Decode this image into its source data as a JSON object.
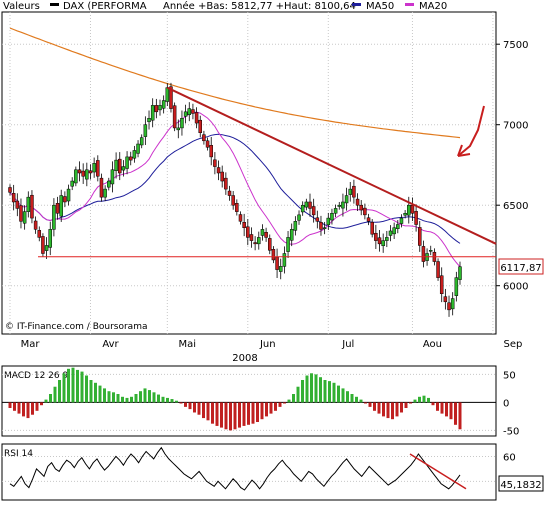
{
  "legend": {
    "valeurs": "Valeurs",
    "dax": "DAX (PERFORMA",
    "annee": "Année +Bas: 5812,77 +Haut: 8100,64",
    "ma50": "MA50",
    "ma20": "MA20"
  },
  "colors": {
    "candle_up": "#2db82d",
    "candle_down": "#c81e1e",
    "ma50": "#1e1e9a",
    "ma20": "#cc33cc",
    "ma_long": "#e07a1e",
    "trendline": "#b41e1e",
    "support": "#e02020",
    "macd_pos": "#33b033",
    "macd_neg": "#c02020",
    "price_box": "#cc2020"
  },
  "source": "© IT-Finance.com / Boursorama",
  "year": "2008",
  "chart_data": [
    {
      "type": "candlestick",
      "title": "DAX (PERFORMA",
      "months": [
        "Mar",
        "Avr",
        "Mai",
        "Jun",
        "Jul",
        "Aou",
        "Sep"
      ],
      "month_day_index": [
        0,
        22,
        43,
        65,
        87,
        110,
        132
      ],
      "ylim": [
        5700,
        7700
      ],
      "yticks": [
        6000,
        6500,
        7000,
        7500
      ],
      "ytick_labels": [
        "6000",
        "6500",
        "7000",
        "7500"
      ],
      "last_price_label": "6117,87",
      "last_price": 6117.87,
      "closes": [
        6580,
        6520,
        6480,
        6400,
        6460,
        6550,
        6420,
        6350,
        6300,
        6200,
        6250,
        6350,
        6500,
        6450,
        6560,
        6520,
        6600,
        6650,
        6720,
        6700,
        6680,
        6720,
        6700,
        6760,
        6680,
        6550,
        6600,
        6650,
        6720,
        6780,
        6700,
        6740,
        6800,
        6780,
        6840,
        6880,
        6920,
        7000,
        7040,
        7120,
        7080,
        7120,
        7150,
        7230,
        7100,
        6980,
        6980,
        7040,
        7080,
        7100,
        7070,
        7010,
        6950,
        6900,
        6860,
        6800,
        6740,
        6700,
        6650,
        6600,
        6560,
        6500,
        6460,
        6400,
        6360,
        6300,
        6280,
        6260,
        6300,
        6350,
        6300,
        6220,
        6160,
        6100,
        6120,
        6200,
        6300,
        6350,
        6400,
        6440,
        6500,
        6520,
        6480,
        6440,
        6400,
        6350,
        6360,
        6420,
        6450,
        6480,
        6500,
        6520,
        6560,
        6600,
        6550,
        6500,
        6470,
        6440,
        6400,
        6320,
        6280,
        6260,
        6280,
        6300,
        6340,
        6360,
        6380,
        6420,
        6450,
        6500,
        6450,
        6380,
        6250,
        6150,
        6200,
        6220,
        6150,
        6050,
        5950,
        5900,
        5850,
        5920,
        6050,
        6117.87
      ],
      "ma_long": {
        "name": "",
        "start_value": 7600,
        "end_value": 6800
      },
      "ma50": {
        "name": "MA50"
      },
      "ma20": {
        "name": "MA20"
      },
      "trendline": {
        "from": {
          "day": 43,
          "value": 7230
        },
        "to": {
          "day": 160,
          "value": 6260
        }
      },
      "support": {
        "value": 6180
      },
      "annotation": "arrow pointing to long moving average"
    },
    {
      "type": "bar",
      "title": "MACD 12 26 9",
      "ylim": [
        -60,
        65
      ],
      "yticks": [
        50,
        0,
        -50
      ],
      "ytick_labels": [
        "50",
        "0",
        "-50"
      ],
      "values": [
        -10,
        -15,
        -20,
        -25,
        -28,
        -22,
        -15,
        -5,
        5,
        15,
        28,
        40,
        52,
        60,
        62,
        58,
        55,
        48,
        40,
        35,
        30,
        25,
        20,
        18,
        15,
        10,
        8,
        10,
        15,
        20,
        25,
        22,
        18,
        14,
        10,
        8,
        6,
        3,
        -2,
        -8,
        -12,
        -18,
        -22,
        -28,
        -32,
        -38,
        -42,
        -45,
        -48,
        -50,
        -48,
        -45,
        -42,
        -40,
        -38,
        -35,
        -30,
        -25,
        -20,
        -15,
        -8,
        -2,
        5,
        15,
        28,
        40,
        48,
        52,
        50,
        45,
        40,
        38,
        35,
        30,
        25,
        20,
        15,
        10,
        5,
        -2,
        -8,
        -15,
        -20,
        -25,
        -28,
        -30,
        -25,
        -18,
        -10,
        -2,
        5,
        10,
        12,
        8,
        -5,
        -15,
        -20,
        -25,
        -30,
        -40,
        -48
      ]
    },
    {
      "type": "line",
      "title": "RSI 14",
      "ylim": [
        25,
        70
      ],
      "yticks": [
        60,
        40
      ],
      "ytick_labels": [
        "60",
        "40"
      ],
      "last_value_label": "45,1832",
      "values": [
        38,
        36,
        40,
        44,
        38,
        35,
        42,
        50,
        47,
        44,
        52,
        55,
        50,
        48,
        53,
        57,
        55,
        51,
        56,
        59,
        54,
        50,
        55,
        58,
        53,
        49,
        52,
        56,
        60,
        57,
        53,
        58,
        62,
        59,
        55,
        60,
        64,
        61,
        58,
        63,
        67,
        62,
        58,
        55,
        52,
        49,
        46,
        44,
        42,
        45,
        48,
        44,
        40,
        38,
        36,
        40,
        37,
        34,
        38,
        42,
        39,
        35,
        33,
        37,
        41,
        38,
        34,
        38,
        43,
        47,
        50,
        54,
        57,
        53,
        50,
        46,
        43,
        40,
        44,
        48,
        46,
        42,
        39,
        36,
        40,
        44,
        47,
        51,
        55,
        58,
        54,
        50,
        47,
        44,
        48,
        52,
        49,
        46,
        43,
        40,
        37,
        39,
        41,
        44,
        47,
        50,
        53,
        57,
        62,
        58,
        54,
        50,
        46,
        42,
        38,
        36,
        34,
        37,
        41,
        45.18
      ],
      "trendline": {
        "from_value": 62,
        "to_value": 34
      }
    }
  ]
}
